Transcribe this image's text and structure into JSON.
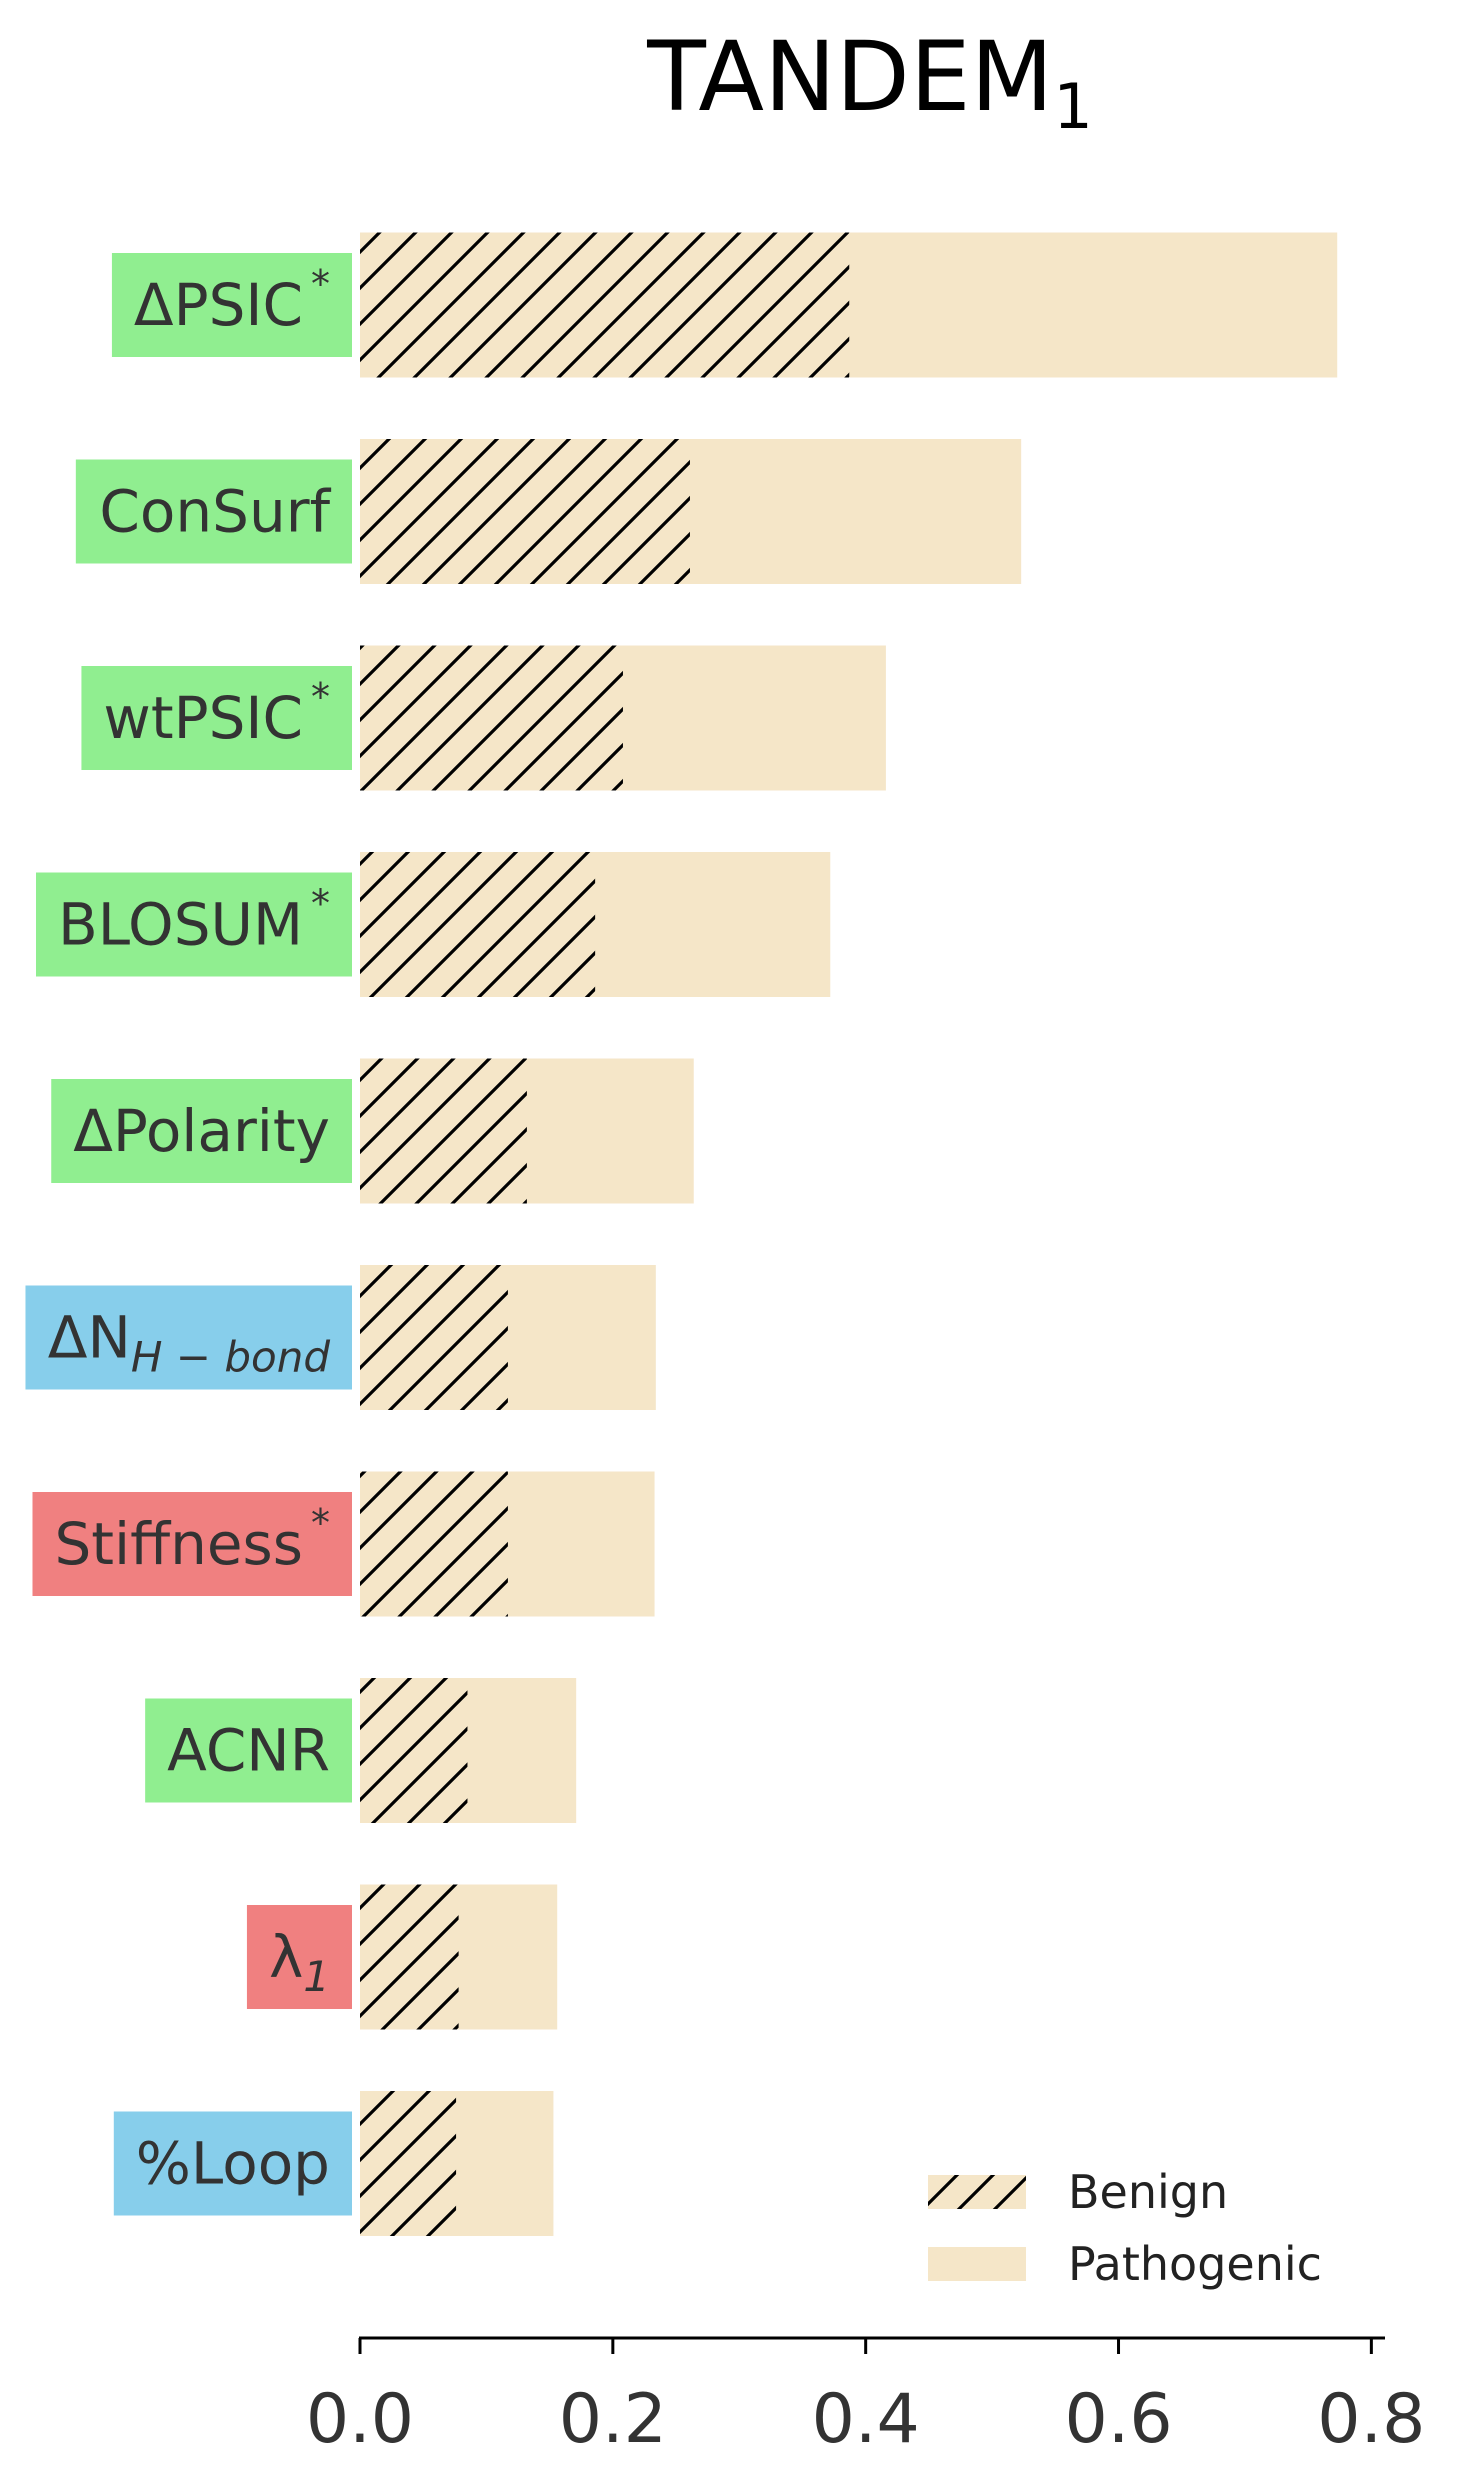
{
  "colors": {
    "bar_fill": "#f5e6c8",
    "hatch": "#000000",
    "axis": "#000000",
    "category_colors": {
      "sequence": "#90ee90",
      "structure": "#87ceeb",
      "dynamics": "#f08080"
    }
  },
  "chart_data": {
    "type": "bar",
    "orientation": "horizontal",
    "title": "TANDEM",
    "title_subscript": "1",
    "categories": [
      {
        "label": "ΔPSIC",
        "sup": "*",
        "sub": "",
        "group": "sequence"
      },
      {
        "label": "ConSurf",
        "sup": "",
        "sub": "",
        "group": "sequence"
      },
      {
        "label": "wtPSIC",
        "sup": "*",
        "sub": "",
        "group": "sequence"
      },
      {
        "label": "BLOSUM",
        "sup": "*",
        "sub": "",
        "group": "sequence"
      },
      {
        "label": "ΔPolarity",
        "sup": "",
        "sub": "",
        "group": "sequence"
      },
      {
        "label": "ΔN",
        "sup": "",
        "sub": "H − bond",
        "group": "structure"
      },
      {
        "label": "Stiffness",
        "sup": "*",
        "sub": "",
        "group": "dynamics"
      },
      {
        "label": "ACNR",
        "sup": "",
        "sub": "",
        "group": "sequence"
      },
      {
        "label": "λ",
        "sup": "",
        "sub": "1",
        "group": "dynamics"
      },
      {
        "label": "%Loop",
        "sup": "",
        "sub": "",
        "group": "structure"
      }
    ],
    "series": [
      {
        "name": "Benign",
        "pattern": "hatch",
        "values": [
          0.387,
          0.261,
          0.208,
          0.186,
          0.132,
          0.117,
          0.117,
          0.085,
          0.078,
          0.076
        ]
      },
      {
        "name": "Pathogenic",
        "pattern": "solid",
        "values": [
          0.386,
          0.262,
          0.208,
          0.186,
          0.132,
          0.117,
          0.116,
          0.086,
          0.078,
          0.077
        ]
      }
    ],
    "stacked": true,
    "xlim": [
      0,
      0.81
    ],
    "xticks": [
      "0.0",
      "0.2",
      "0.4",
      "0.6",
      "0.8"
    ],
    "xtick_values": [
      0,
      0.2,
      0.4,
      0.6,
      0.8
    ],
    "grid": false,
    "legend_position": "bottom-right"
  }
}
